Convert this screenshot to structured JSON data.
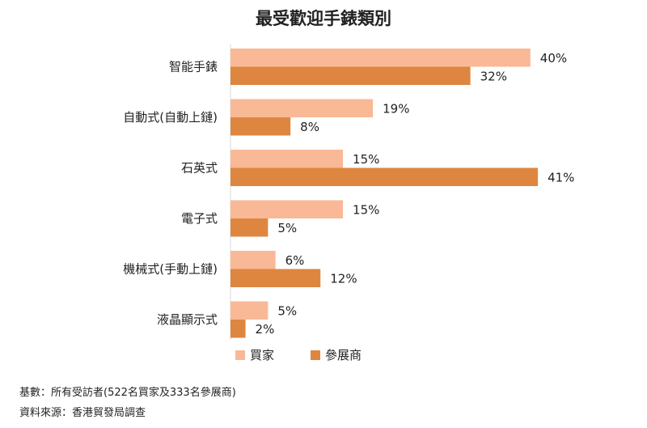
{
  "chart_data": {
    "type": "bar",
    "orientation": "horizontal",
    "title": "最受歡迎手錶類別",
    "categories": [
      "智能手錶",
      "自動式(自動上鏈)",
      "石英式",
      "電子式",
      "機械式(手動上鏈)",
      "液晶顯示式"
    ],
    "series": [
      {
        "name": "買家",
        "color": "#F9B896",
        "values": [
          40,
          19,
          15,
          15,
          6,
          5
        ]
      },
      {
        "name": "參展商",
        "color": "#DE8640",
        "values": [
          32,
          8,
          41,
          5,
          12,
          2
        ]
      }
    ],
    "value_suffix": "%",
    "xlim": [
      0,
      41
    ],
    "grid": false,
    "legend_position": "bottom"
  },
  "notes": {
    "base": "基數：所有受訪者(522名買家及333名參展商)",
    "source": "資料來源：香港貿發局調查"
  }
}
